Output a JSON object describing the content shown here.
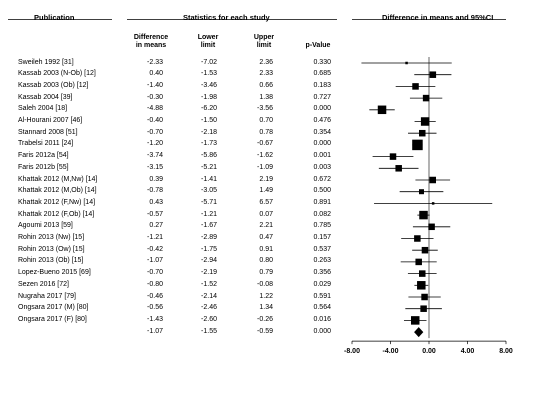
{
  "headers": {
    "publication": "Publication",
    "stats": "Statistics for each study",
    "forest": "Difference in means and 95%CI"
  },
  "columns": {
    "diff_line1": "Difference",
    "diff_line2": "in means",
    "lower_line1": "Lower",
    "lower_line2": "limit",
    "upper_line1": "Upper",
    "upper_line2": "limit",
    "pvalue": "p-Value"
  },
  "chart_data": {
    "type": "forest",
    "xlim": [
      -8,
      8
    ],
    "ticks": [
      "-8.00",
      "-4.00",
      "0.00",
      "4.00",
      "8.00"
    ],
    "tick_values": [
      -8,
      -4,
      0,
      4,
      8
    ],
    "rows": [
      {
        "study": "Sweileh 1992 [31]",
        "diff": "-2.33",
        "lower": "-7.02",
        "upper": "2.36",
        "p": "0.330",
        "d": -2.33,
        "lo": -7.02,
        "hi": 2.36,
        "w": 1
      },
      {
        "study": "Kassab 2003 (N-Ob) [12]",
        "diff": "0.40",
        "lower": "-1.53",
        "upper": "2.33",
        "p": "0.685",
        "d": 0.4,
        "lo": -1.53,
        "hi": 2.33,
        "w": 3
      },
      {
        "study": "Kassab 2003 (Ob) [12]",
        "diff": "-1.40",
        "lower": "-3.46",
        "upper": "0.66",
        "p": "0.183",
        "d": -1.4,
        "lo": -3.46,
        "hi": 0.66,
        "w": 3
      },
      {
        "study": "Kassab 2004 [39]",
        "diff": "-0.30",
        "lower": "-1.98",
        "upper": "1.38",
        "p": "0.727",
        "d": -0.3,
        "lo": -1.98,
        "hi": 1.38,
        "w": 3
      },
      {
        "study": "Saleh 2004 [18]",
        "diff": "-4.88",
        "lower": "-6.20",
        "upper": "-3.56",
        "p": "0.000",
        "d": -4.88,
        "lo": -6.2,
        "hi": -3.56,
        "w": 4
      },
      {
        "study": "Al-Hourani 2007 [46]",
        "diff": "-0.40",
        "lower": "-1.50",
        "upper": "0.70",
        "p": "0.476",
        "d": -0.4,
        "lo": -1.5,
        "hi": 0.7,
        "w": 4
      },
      {
        "study": "Stannard 2008 [51]",
        "diff": "-0.70",
        "lower": "-2.18",
        "upper": "0.78",
        "p": "0.354",
        "d": -0.7,
        "lo": -2.18,
        "hi": 0.78,
        "w": 3
      },
      {
        "study": "Trabelsi 2011 [24]",
        "diff": "-1.20",
        "lower": "-1.73",
        "upper": "-0.67",
        "p": "0.000",
        "d": -1.2,
        "lo": -1.73,
        "hi": -0.67,
        "w": 5
      },
      {
        "study": "Faris 2012a [54]",
        "diff": "-3.74",
        "lower": "-5.86",
        "upper": "-1.62",
        "p": "0.001",
        "d": -3.74,
        "lo": -5.86,
        "hi": -1.62,
        "w": 3
      },
      {
        "study": "Faris 2012b [55]",
        "diff": "-3.15",
        "lower": "-5.21",
        "upper": "-1.09",
        "p": "0.003",
        "d": -3.15,
        "lo": -5.21,
        "hi": -1.09,
        "w": 3
      },
      {
        "study": "Khattak 2012 (M,Nw) [14]",
        "diff": "0.39",
        "lower": "-1.41",
        "upper": "2.19",
        "p": "0.672",
        "d": 0.39,
        "lo": -1.41,
        "hi": 2.19,
        "w": 3
      },
      {
        "study": "Khattak 2012 (M,Ob) [14]",
        "diff": "-0.78",
        "lower": "-3.05",
        "upper": "1.49",
        "p": "0.500",
        "d": -0.78,
        "lo": -3.05,
        "hi": 1.49,
        "w": 2
      },
      {
        "study": "Khattak 2012 (F,Nw) [14]",
        "diff": "0.43",
        "lower": "-5.71",
        "upper": "6.57",
        "p": "0.891",
        "d": 0.43,
        "lo": -5.71,
        "hi": 6.57,
        "w": 1
      },
      {
        "study": "Khattak 2012 (F,Ob) [14]",
        "diff": "-0.57",
        "lower": "-1.21",
        "upper": "0.07",
        "p": "0.082",
        "d": -0.57,
        "lo": -1.21,
        "hi": 0.07,
        "w": 4
      },
      {
        "study": "Agoumi 2013 [59]",
        "diff": "0.27",
        "lower": "-1.67",
        "upper": "2.21",
        "p": "0.785",
        "d": 0.27,
        "lo": -1.67,
        "hi": 2.21,
        "w": 3
      },
      {
        "study": "Rohin 2013 (Nw) [15]",
        "diff": "-1.21",
        "lower": "-2.89",
        "upper": "0.47",
        "p": "0.157",
        "d": -1.21,
        "lo": -2.89,
        "hi": 0.47,
        "w": 3
      },
      {
        "study": "Rohin 2013 (Ow) [15]",
        "diff": "-0.42",
        "lower": "-1.75",
        "upper": "0.91",
        "p": "0.537",
        "d": -0.42,
        "lo": -1.75,
        "hi": 0.91,
        "w": 3
      },
      {
        "study": "Rohin 2013 (Ob) [15]",
        "diff": "-1.07",
        "lower": "-2.94",
        "upper": "0.80",
        "p": "0.263",
        "d": -1.07,
        "lo": -2.94,
        "hi": 0.8,
        "w": 3
      },
      {
        "study": "Lopez-Bueno 2015 [69]",
        "diff": "-0.70",
        "lower": "-2.19",
        "upper": "0.79",
        "p": "0.356",
        "d": -0.7,
        "lo": -2.19,
        "hi": 0.79,
        "w": 3
      },
      {
        "study": "Sezen 2016 [72]",
        "diff": "-0.80",
        "lower": "-1.52",
        "upper": "-0.08",
        "p": "0.029",
        "d": -0.8,
        "lo": -1.52,
        "hi": -0.08,
        "w": 4
      },
      {
        "study": "Nugraha 2017 [79]",
        "diff": "-0.46",
        "lower": "-2.14",
        "upper": "1.22",
        "p": "0.591",
        "d": -0.46,
        "lo": -2.14,
        "hi": 1.22,
        "w": 3
      },
      {
        "study": "Ongsara 2017 (M) [80]",
        "diff": "-0.56",
        "lower": "-2.46",
        "upper": "1.34",
        "p": "0.564",
        "d": -0.56,
        "lo": -2.46,
        "hi": 1.34,
        "w": 3
      },
      {
        "study": "Ongsara 2017 (F) [80]",
        "diff": "-1.43",
        "lower": "-2.60",
        "upper": "-0.26",
        "p": "0.016",
        "d": -1.43,
        "lo": -2.6,
        "hi": -0.26,
        "w": 4
      }
    ],
    "summary": {
      "diff": "-1.07",
      "lower": "-1.55",
      "upper": "-0.59",
      "p": "0.000",
      "d": -1.07,
      "lo": -1.55,
      "hi": -0.59
    }
  }
}
